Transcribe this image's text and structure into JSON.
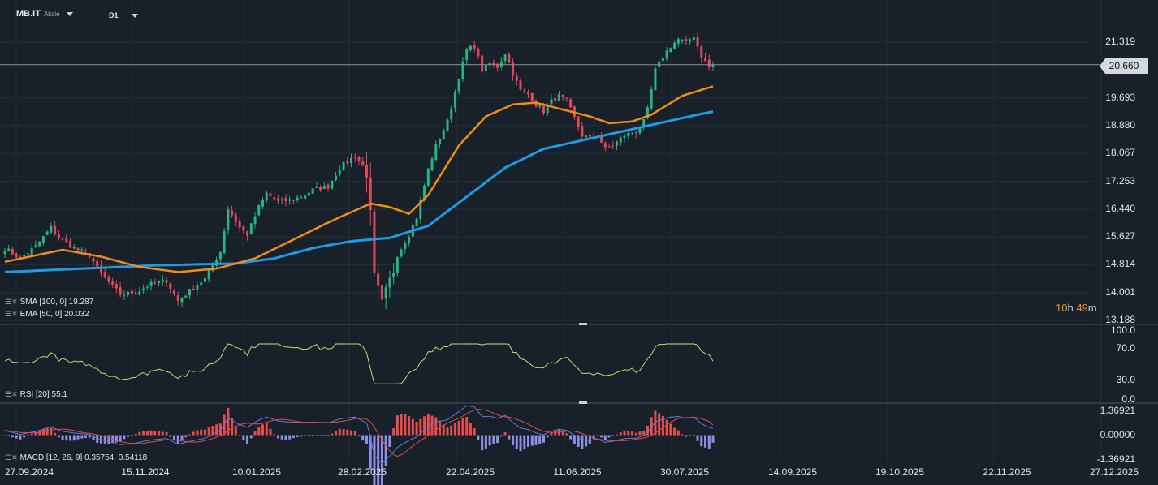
{
  "header": {
    "symbol": "MB.IT",
    "instrument_type": "Akcie",
    "timeframe": "D1"
  },
  "indicators": {
    "sma_label": "SMA [100, 0] 19.287",
    "ema_label": "EMA [50, 0] 20.032",
    "rsi_label": "RSI [20] 55.1",
    "macd_label": "MACD [12, 26, 9] 0.35754, 0.54118"
  },
  "current_price": "20.660",
  "countdown": {
    "hours": "10",
    "h_unit": "h",
    "minutes": "49",
    "m_unit": "m"
  },
  "price_axis": [
    "21.319",
    "19.693",
    "18.880",
    "18.067",
    "17.253",
    "16.440",
    "15.627",
    "14.814",
    "14.001",
    "13.188"
  ],
  "rsi_axis": [
    "100.0",
    "70.0",
    "30.0",
    "0.0"
  ],
  "macd_axis": [
    "1.36921",
    "0.00000",
    "-1.36921"
  ],
  "date_axis": [
    "27.09.2024",
    "15.11.2024",
    "10.01.2025",
    "28.02.2025",
    "22.04.2025",
    "11.06.2025",
    "30.07.2025",
    "14.09.2025",
    "19.10.2025",
    "22.11.2025",
    "27.12.2025"
  ],
  "colors": {
    "up": "#26b57f",
    "down": "#e5475a",
    "sma": "#1e9be6",
    "ema": "#f08c1a",
    "rsi": "#d8d36a",
    "macd": "#5a7de0",
    "signal": "#e14848",
    "hist_pos": "#e84d4d",
    "hist_neg": "#8f8fe6"
  },
  "chart_data": {
    "type": "candlestick",
    "price_range": [
      13.188,
      21.8
    ],
    "close_anchors": [
      [
        0,
        15.3
      ],
      [
        4,
        15.0
      ],
      [
        8,
        15.35
      ],
      [
        12,
        15.9
      ],
      [
        14,
        15.6
      ],
      [
        18,
        15.3
      ],
      [
        22,
        15.1
      ],
      [
        24,
        14.7
      ],
      [
        27,
        14.3
      ],
      [
        30,
        13.95
      ],
      [
        34,
        14.0
      ],
      [
        38,
        14.25
      ],
      [
        42,
        14.35
      ],
      [
        45,
        13.75
      ],
      [
        48,
        14.05
      ],
      [
        52,
        14.4
      ],
      [
        56,
        15.2
      ],
      [
        58,
        16.45
      ],
      [
        61,
        15.9
      ],
      [
        63,
        15.7
      ],
      [
        66,
        16.5
      ],
      [
        68,
        16.9
      ],
      [
        71,
        16.65
      ],
      [
        74,
        16.7
      ],
      [
        77,
        16.8
      ],
      [
        80,
        17.0
      ],
      [
        84,
        17.1
      ],
      [
        87,
        17.65
      ],
      [
        91,
        18.0
      ],
      [
        94,
        17.55
      ],
      [
        95,
        16.2
      ],
      [
        96,
        14.4
      ],
      [
        98,
        13.6
      ],
      [
        100,
        14.3
      ],
      [
        102,
        15.1
      ],
      [
        105,
        15.7
      ],
      [
        107,
        16.2
      ],
      [
        110,
        17.6
      ],
      [
        112,
        18.3
      ],
      [
        115,
        19.0
      ],
      [
        118,
        20.3
      ],
      [
        120,
        21.1
      ],
      [
        122,
        21.2
      ],
      [
        124,
        20.5
      ],
      [
        126,
        20.7
      ],
      [
        128,
        20.6
      ],
      [
        130,
        21.0
      ],
      [
        132,
        20.4
      ],
      [
        134,
        19.9
      ],
      [
        136,
        19.8
      ],
      [
        138,
        19.5
      ],
      [
        140,
        19.3
      ],
      [
        142,
        19.6
      ],
      [
        144,
        19.75
      ],
      [
        146,
        19.6
      ],
      [
        148,
        19.1
      ],
      [
        150,
        18.6
      ],
      [
        152,
        18.5
      ],
      [
        154,
        18.6
      ],
      [
        156,
        18.2
      ],
      [
        158,
        18.3
      ],
      [
        161,
        18.6
      ],
      [
        164,
        18.7
      ],
      [
        166,
        19.0
      ],
      [
        167,
        19.35
      ],
      [
        169,
        20.5
      ],
      [
        171,
        20.9
      ],
      [
        173,
        21.2
      ],
      [
        175,
        21.4
      ],
      [
        177,
        21.3
      ],
      [
        179,
        21.5
      ],
      [
        181,
        20.9
      ],
      [
        183,
        20.6
      ],
      [
        184,
        20.66
      ]
    ],
    "sma_anchors": [
      [
        0,
        14.6
      ],
      [
        20,
        14.7
      ],
      [
        40,
        14.8
      ],
      [
        60,
        14.85
      ],
      [
        70,
        15.0
      ],
      [
        80,
        15.3
      ],
      [
        90,
        15.5
      ],
      [
        100,
        15.6
      ],
      [
        110,
        15.95
      ],
      [
        120,
        16.8
      ],
      [
        130,
        17.65
      ],
      [
        140,
        18.2
      ],
      [
        150,
        18.45
      ],
      [
        160,
        18.7
      ],
      [
        170,
        18.95
      ],
      [
        180,
        19.2
      ],
      [
        184,
        19.29
      ]
    ],
    "ema_anchors": [
      [
        0,
        14.9
      ],
      [
        15,
        15.25
      ],
      [
        25,
        15.05
      ],
      [
        35,
        14.75
      ],
      [
        45,
        14.6
      ],
      [
        55,
        14.7
      ],
      [
        65,
        15.0
      ],
      [
        75,
        15.55
      ],
      [
        85,
        16.1
      ],
      [
        95,
        16.6
      ],
      [
        100,
        16.5
      ],
      [
        105,
        16.3
      ],
      [
        110,
        16.85
      ],
      [
        118,
        18.3
      ],
      [
        125,
        19.15
      ],
      [
        132,
        19.5
      ],
      [
        138,
        19.55
      ],
      [
        145,
        19.35
      ],
      [
        152,
        19.15
      ],
      [
        157,
        18.95
      ],
      [
        163,
        19.0
      ],
      [
        168,
        19.2
      ],
      [
        176,
        19.75
      ],
      [
        184,
        20.03
      ]
    ],
    "volatile_index_range": [
      94,
      101
    ],
    "rsi": {
      "range": [
        0,
        100
      ],
      "last": 55.1,
      "levels": [
        30,
        70
      ]
    },
    "macd": {
      "range": [
        -1.36921,
        1.36921
      ],
      "macd": 0.35754,
      "signal": 0.54118
    },
    "x_dates": [
      "27.09.2024",
      "15.11.2024",
      "10.01.2025",
      "28.02.2025",
      "22.04.2025",
      "11.06.2025",
      "30.07.2025",
      "14.09.2025",
      "19.10.2025",
      "22.11.2025",
      "27.12.2025"
    ]
  }
}
